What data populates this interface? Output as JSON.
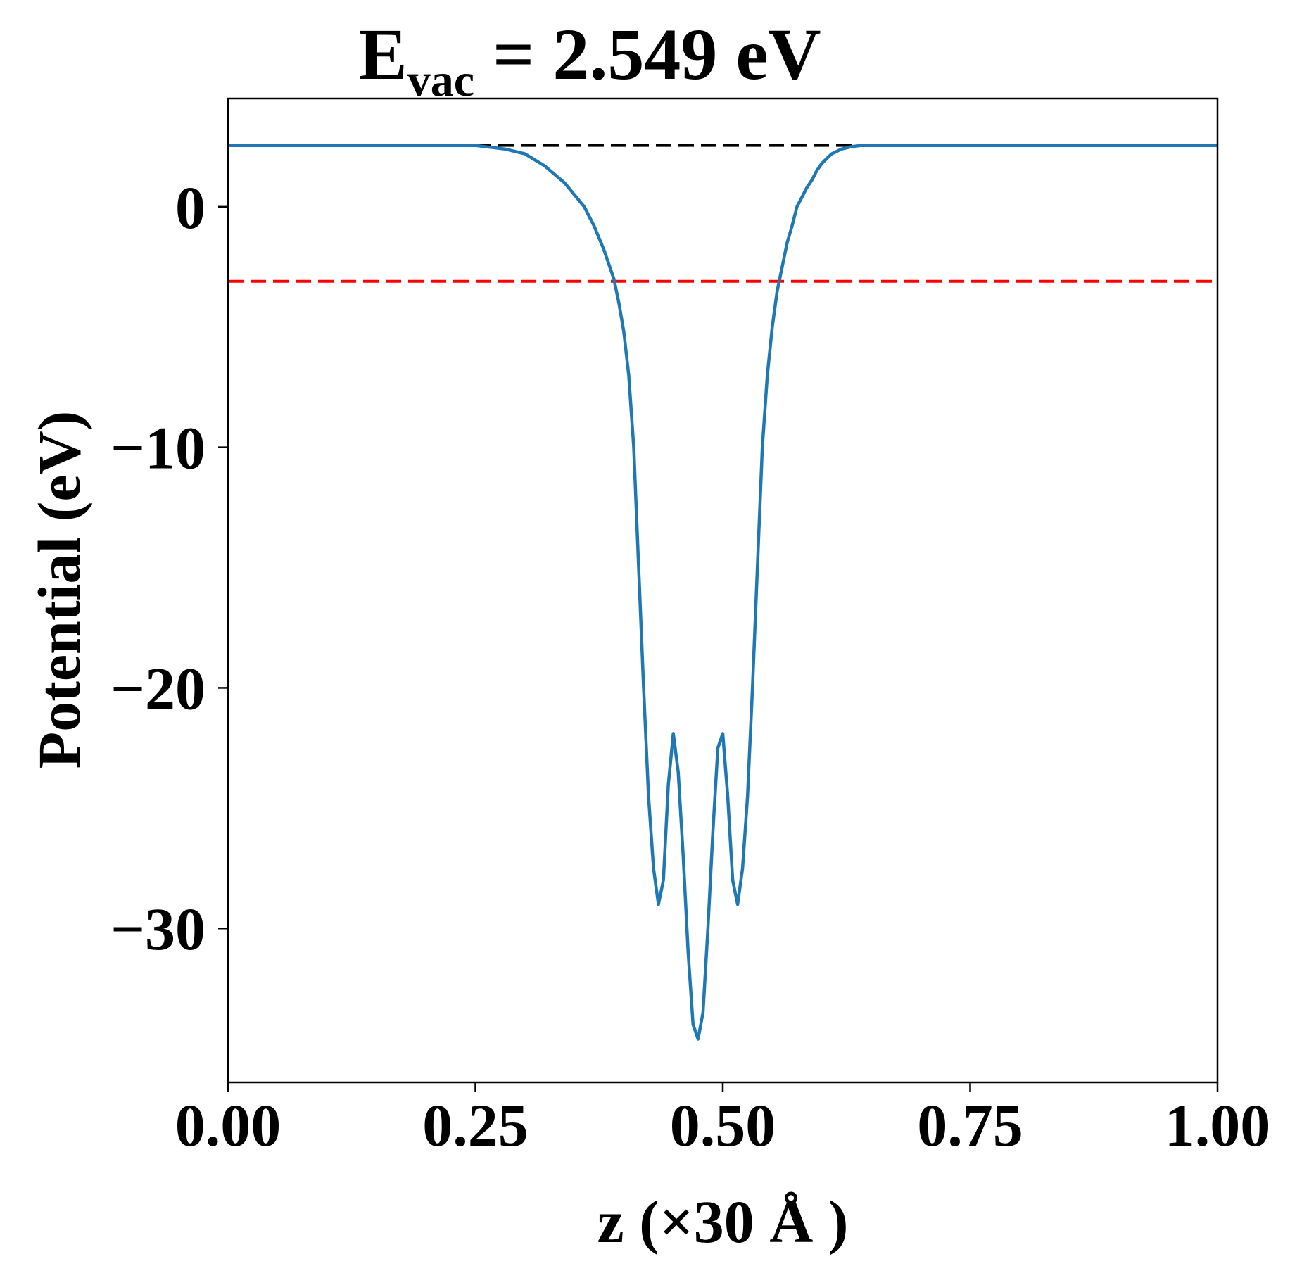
{
  "chart_data": {
    "type": "line",
    "title": {
      "main": "E",
      "subscript": "vac",
      "suffix": " = 2.549 eV"
    },
    "xlabel": "z (×30 Å )",
    "ylabel": "Potential (eV)",
    "xlim": [
      0.0,
      1.0
    ],
    "ylim": [
      -36.4,
      4.5
    ],
    "x_ticks": [
      0.0,
      0.25,
      0.5,
      0.75,
      1.0
    ],
    "x_tick_labels": [
      "0.00",
      "0.25",
      "0.50",
      "0.75",
      "1.00"
    ],
    "y_ticks": [
      0,
      -10,
      -20,
      -30
    ],
    "y_tick_labels": [
      "0",
      "−10",
      "−20",
      "−30"
    ],
    "grid": false,
    "legend": "none",
    "reference_lines": [
      {
        "y": 2.549,
        "style": "dashed",
        "color": "#000000"
      },
      {
        "y": -3.1,
        "style": "dashed",
        "color": "#ff0000"
      }
    ],
    "series": [
      {
        "color": "#1f77b4",
        "x": [
          0.0,
          0.05,
          0.1,
          0.15,
          0.2,
          0.25,
          0.28,
          0.3,
          0.32,
          0.34,
          0.36,
          0.37,
          0.38,
          0.39,
          0.395,
          0.4,
          0.405,
          0.41,
          0.415,
          0.42,
          0.425,
          0.43,
          0.435,
          0.44,
          0.445,
          0.45,
          0.455,
          0.46,
          0.465,
          0.47,
          0.475,
          0.48,
          0.485,
          0.49,
          0.495,
          0.5,
          0.505,
          0.51,
          0.515,
          0.52,
          0.525,
          0.53,
          0.535,
          0.54,
          0.545,
          0.55,
          0.555,
          0.56,
          0.565,
          0.57,
          0.575,
          0.58,
          0.585,
          0.59,
          0.595,
          0.6,
          0.605,
          0.61,
          0.62,
          0.63,
          0.64,
          0.66,
          0.68,
          0.7,
          0.72,
          0.75,
          0.8,
          0.85,
          0.9,
          0.95,
          1.0
        ],
        "y": [
          2.55,
          2.55,
          2.55,
          2.55,
          2.55,
          2.55,
          2.4,
          2.2,
          1.7,
          1.0,
          0.0,
          -0.8,
          -1.8,
          -3.0,
          -4.0,
          -5.2,
          -7.0,
          -10.0,
          -15.0,
          -20.0,
          -24.5,
          -27.5,
          -29.0,
          -28.0,
          -24.0,
          -21.9,
          -23.5,
          -27.0,
          -31.0,
          -34.0,
          -34.6,
          -33.5,
          -30.0,
          -26.0,
          -22.5,
          -21.9,
          -24.5,
          -28.0,
          -29.0,
          -27.5,
          -24.5,
          -20.0,
          -15.0,
          -10.0,
          -7.0,
          -5.0,
          -3.5,
          -2.5,
          -1.5,
          -0.8,
          0.0,
          0.4,
          0.8,
          1.1,
          1.5,
          1.8,
          2.0,
          2.2,
          2.4,
          2.5,
          2.55,
          2.55,
          2.55,
          2.55,
          2.55,
          2.55,
          2.55,
          2.55,
          2.55,
          2.55,
          2.55
        ]
      }
    ]
  }
}
